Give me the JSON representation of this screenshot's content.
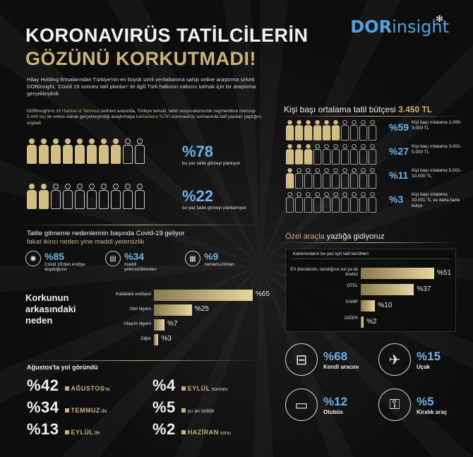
{
  "header": {
    "title_line1": "KORONAVIRÜS TATİLCİLERİN",
    "title_line2": "GÖZÜNÜ KORKUTMADI!",
    "logo_bold": "DOR",
    "logo_rest": "insight"
  },
  "intro": {
    "paragraph1": "Hitay Holding firmalarından Türkiye'nin en büyük izinli veritabanına sahip online araştırma şirketi DORinsight, 'Covid 19 sonrası tatil planları' ile ilgili Türk halkının nabzını tutmak için bir araştırma gerçekleştirdi.",
    "p2_a": "DORinsight'ın ",
    "p2_date": "26 Haziran-6 Temmuz",
    "p2_b": " tarihleri arasında, Türkiye temsili, farklı sosyo-ekonomik segmentlere mensup ",
    "p2_count": "5.448 kişi",
    "p2_c": " ile online olarak gerçekleştirdiği araştırmaya ",
    "p2_part": "katılanların %78'i",
    "p2_d": " koronavirüs sonrasında tatil planları yaptığını söyledi."
  },
  "plans": [
    {
      "pct": "%78",
      "caption": "bu yaz tatile gitmeyi planlıyor",
      "filled": 8,
      "total": 10
    },
    {
      "pct": "%22",
      "caption": "bu yaz tatile gitmeyi planlamıyor",
      "filled": 2,
      "total": 10
    }
  ],
  "budget": {
    "title": "Kişi başı ortalama tatil bütçesi",
    "value": "3.450 TL",
    "rows": [
      {
        "pct": "%59",
        "label": "Kişi başı ortalama 1.000-3.000 TL",
        "filled": 6
      },
      {
        "pct": "%27",
        "label": "Kişi başı ortalama 3.001-5.000 TL",
        "filled": 3
      },
      {
        "pct": "%11",
        "label": "Kişi başı ortalama 5.001-10.000 TL",
        "filled": 1
      },
      {
        "pct": "%3",
        "label": "Kişi başı ortalama 10.001 TL ve daha fazla bütçe",
        "filled": 0
      }
    ]
  },
  "reasons": {
    "title": "Tatile gitmeme nedenlerinin başında Covid-19 geliyor",
    "subtitle": "fakat ikinci neden yine maddi yetersizlik",
    "items": [
      {
        "pct": "%85",
        "label": "Covid 19'dan endişe duyduğunu",
        "icon": "virus-icon"
      },
      {
        "pct": "%34",
        "label": "maddi yetersizliklerden",
        "icon": "money-icon"
      },
      {
        "pct": "%9",
        "label": "zamansızlıktan",
        "icon": "calendar-icon"
      }
    ]
  },
  "fear": {
    "title": "Korkunun arkasındaki neden",
    "chart_data": {
      "type": "bar",
      "categories": [
        "Kalabalık endişesi",
        "Otel hijyeni",
        "Ulaşım hijyeni",
        "Diğer"
      ],
      "values": [
        65,
        25,
        7,
        3
      ],
      "value_labels": [
        "%65",
        "%25",
        "%7",
        "%3"
      ]
    }
  },
  "months": {
    "title": "Ağustos'ta yol göründü",
    "items": [
      {
        "pct": "%42",
        "label": "AĞUSTOS",
        "suffix": "'ta"
      },
      {
        "pct": "%34",
        "label": "TEMMUZ",
        "suffix": "'da"
      },
      {
        "pct": "%13",
        "label": "EYLÜL",
        "suffix": "'de"
      },
      {
        "pct": "%4",
        "label": "EYLÜL",
        "suffix": "sonrası"
      },
      {
        "pct": "%5",
        "label": "",
        "suffix": "şu an tatilde"
      },
      {
        "pct": "%2",
        "label": "HAZİRAN",
        "suffix": "sonu"
      }
    ]
  },
  "car": {
    "title_a": "Özel araçla",
    "title_b": "yazlığa gidiyoruz",
    "panel_title": "Katılımcıların bu yaz için tatil tercihleri",
    "chart_data": {
      "type": "bar",
      "categories": [
        "EV (kendisinin, tanıdığının evi ya da kiralık)",
        "OTEL",
        "KAMP",
        "DİĞER"
      ],
      "values": [
        51,
        37,
        10,
        2
      ],
      "value_labels": [
        "%51",
        "%37",
        "%10",
        "%2"
      ]
    }
  },
  "transport": [
    {
      "pct": "%68",
      "label": "Kendi aracını",
      "icon": "car-icon"
    },
    {
      "pct": "%15",
      "label": "Uçak",
      "icon": "plane-icon"
    },
    {
      "pct": "%12",
      "label": "Otobüs",
      "icon": "bus-icon"
    },
    {
      "pct": "%5",
      "label": "Kiralık araç",
      "icon": "car-key-icon"
    }
  ]
}
